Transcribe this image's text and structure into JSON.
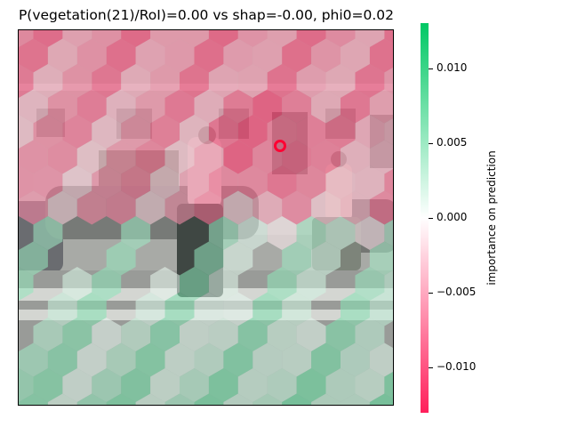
{
  "chart_data": {
    "type": "heatmap",
    "title": "P(vegetation(21)/RoI)=0.00 vs shap=-0.00, phi0=0.02",
    "grid": false,
    "axes_visible": false,
    "background": "street photo (grayscale): building facade with windows, parked cars, two pedestrians on a crosswalk",
    "overlay": "hexagonal SHAP importance cells",
    "marker": {
      "type": "circle",
      "color": "#ff0033",
      "note": "red ring marking the region of interest"
    },
    "colorbar": {
      "label": "importance on prediction",
      "range": [
        -0.013,
        0.013
      ],
      "ticks": [
        0.01,
        0.005,
        0.0,
        -0.005,
        -0.01
      ],
      "tick_labels": [
        "0.010",
        "0.005",
        "0.000",
        "−0.005",
        "−0.010"
      ],
      "color_negative": "#ff1f5b",
      "color_mid": "#ffffff",
      "color_positive": "#00c864"
    }
  }
}
